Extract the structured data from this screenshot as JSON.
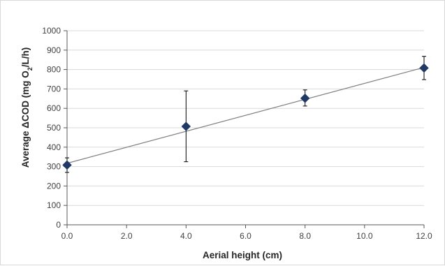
{
  "chart_data": {
    "type": "scatter",
    "title": "",
    "xlabel": "Aerial height (cm)",
    "ylabel_parts": {
      "main": "Average ΔCOD (mg O",
      "subscript": "2",
      "tail": "/L/h)"
    },
    "xlim": [
      0,
      12
    ],
    "ylim": [
      0,
      1000
    ],
    "x_ticks": [
      0,
      2,
      4,
      6,
      8,
      10,
      12
    ],
    "x_tick_labels": [
      "0.0",
      "2.0",
      "4.0",
      "6.0",
      "8.0",
      "10.0",
      "12.0"
    ],
    "y_ticks": [
      0,
      100,
      200,
      300,
      400,
      500,
      600,
      700,
      800,
      900,
      1000
    ],
    "y_tick_labels": [
      "0",
      "100",
      "200",
      "300",
      "400",
      "500",
      "600",
      "700",
      "800",
      "900",
      "1000"
    ],
    "grid": true,
    "legend": "none",
    "series": [
      {
        "marker": "diamond",
        "color": "#1f3864",
        "points": [
          {
            "x": 0,
            "y": 308,
            "err_low": 270,
            "err_high": 345
          },
          {
            "x": 4,
            "y": 507,
            "err_low": 325,
            "err_high": 690
          },
          {
            "x": 8,
            "y": 652,
            "err_low": 612,
            "err_high": 695
          },
          {
            "x": 12,
            "y": 808,
            "err_low": 748,
            "err_high": 868
          }
        ]
      }
    ],
    "trendline": {
      "type": "linear",
      "color": "#7f7f7f",
      "x": [
        0,
        12
      ],
      "y": [
        317,
        811
      ]
    }
  }
}
